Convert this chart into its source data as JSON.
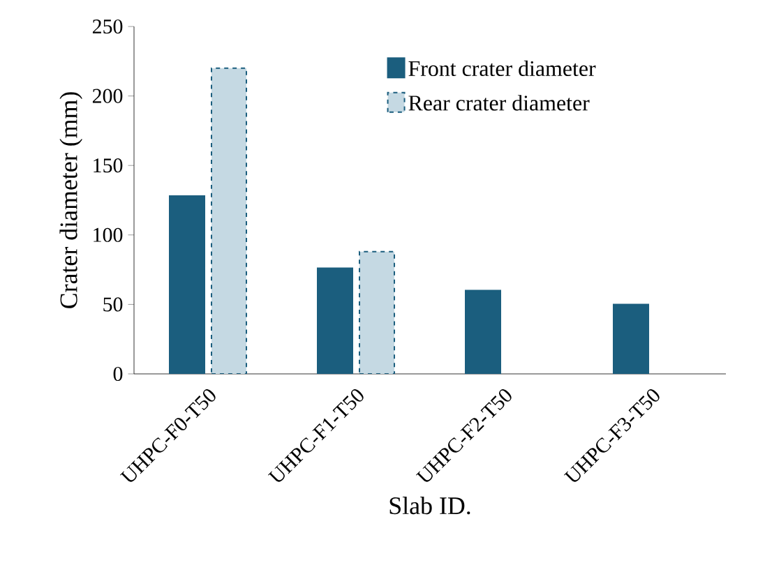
{
  "chart_data": {
    "type": "bar",
    "xlabel": "Slab ID.",
    "ylabel": "Crater diameter (mm)",
    "categories": [
      "UHPC-F0-T50",
      "UHPC-F1-T50",
      "UHPC-F2-T50",
      "UHPC-F3-T50"
    ],
    "series": [
      {
        "name": "Front crater diameter",
        "color": "#1b5e7e",
        "values": [
          128,
          76,
          60,
          50
        ]
      },
      {
        "name": "Rear crater diameter",
        "color": "#c5d9e3",
        "line_style": "dashed",
        "values": [
          220,
          88,
          null,
          null
        ]
      }
    ],
    "ylim": [
      0,
      250
    ],
    "yticks": [
      0,
      50,
      100,
      150,
      200,
      250
    ],
    "grid": false,
    "legend": "top right"
  }
}
